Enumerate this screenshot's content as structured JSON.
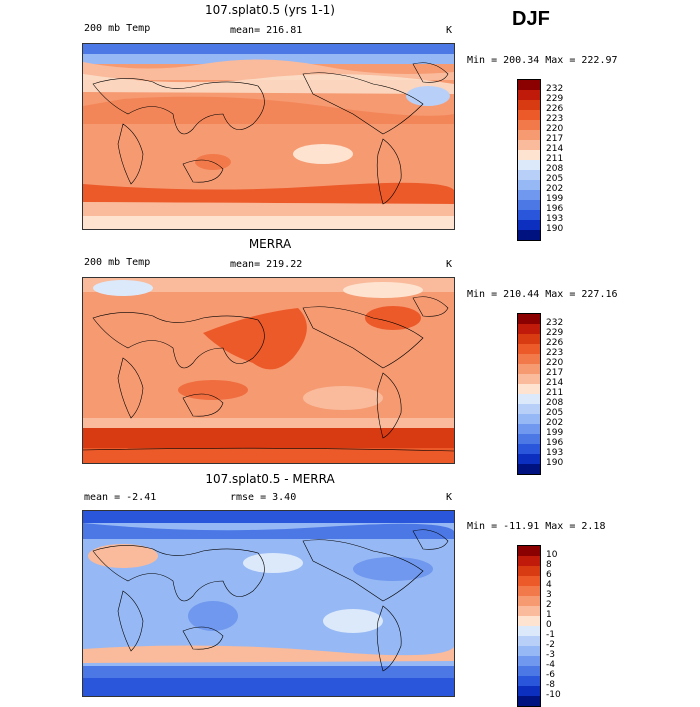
{
  "season": "DJF",
  "panels": [
    {
      "title": "107.splat0.5 (yrs 1-1)",
      "left_label": "200 mb Temp",
      "mid_label": "mean= 216.81",
      "units": "K",
      "minmax": "Min = 200.34  Max = 222.97",
      "colorbar_labels": [
        "232",
        "229",
        "226",
        "223",
        "220",
        "217",
        "214",
        "211",
        "208",
        "205",
        "202",
        "199",
        "196",
        "193",
        "190"
      ]
    },
    {
      "title": "MERRA",
      "left_label": "200 mb Temp",
      "mid_label": "mean= 219.22",
      "units": "K",
      "minmax": "Min = 210.44  Max = 227.16",
      "colorbar_labels": [
        "232",
        "229",
        "226",
        "223",
        "220",
        "217",
        "214",
        "211",
        "208",
        "205",
        "202",
        "199",
        "196",
        "193",
        "190"
      ]
    },
    {
      "title": "107.splat0.5 - MERRA",
      "left_label": "mean =   -2.41",
      "mid_label": "rmse =   3.40",
      "units": "K",
      "minmax": "Min = -11.91  Max =   2.18",
      "colorbar_labels": [
        "10",
        "8",
        "6",
        "4",
        "3",
        "2",
        "1",
        "0",
        "-1",
        "-2",
        "-3",
        "-4",
        "-6",
        "-8",
        "-10"
      ]
    }
  ],
  "colors": {
    "abs_scale": [
      "#8b0000",
      "#c01a0a",
      "#d83a12",
      "#ec5a2a",
      "#f27a4a",
      "#f69a72",
      "#f9bb9c",
      "#fde3d0",
      "#dbe9fb",
      "#b8d0f8",
      "#96b8f4",
      "#6f98ee",
      "#4c78e6",
      "#2a56dc",
      "#0d2fbf",
      "#00127f"
    ],
    "diff_scale": [
      "#8b0000",
      "#c01a0a",
      "#d83a12",
      "#ec5a2a",
      "#f27a4a",
      "#f69a72",
      "#f9bb9c",
      "#fde3d0",
      "#dbe9fb",
      "#b8d0f8",
      "#96b8f4",
      "#6f98ee",
      "#4c78e6",
      "#2a56dc",
      "#0d2fbf",
      "#00127f"
    ]
  }
}
